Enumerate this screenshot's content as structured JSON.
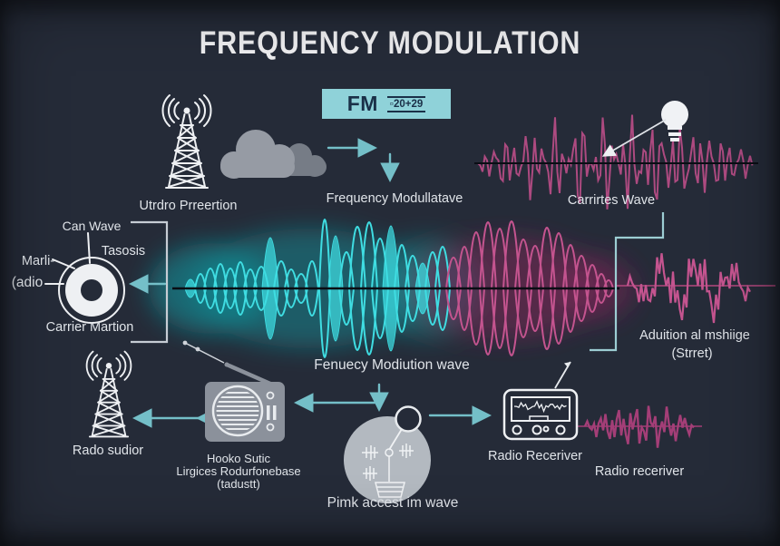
{
  "title": "FREQUENCY MODULATION",
  "badge": {
    "label": "FM",
    "code": "▫20+29"
  },
  "colors": {
    "background": "#252b38",
    "teal_arrow": "#74bfc8",
    "cyan_wave": "#3fdde2",
    "magenta_wave": "#c4548f",
    "badge_bg": "#8fd2d9",
    "badge_text": "#1a3048",
    "label_text": "#e0e4e9",
    "white_line": "#eef0f3",
    "icon_gray": "#939aa4"
  },
  "labels": {
    "transmitter": "Utrdro Prreertion",
    "fm_arrow": "Frequency Modullatave",
    "carrier_wave": "Carrirtes Wave",
    "can_wave": "Can Wave",
    "tasosis": "Tasosis",
    "marli": "Marli-",
    "adio": "(adio",
    "carrier_martion": "Carrier Martion",
    "message_line1": "Aduition al mshiige",
    "message_line2": "(Strret)",
    "modulated_wave": "Fenuecy Modiution wave",
    "radio_tower": "Rado sudior",
    "radio_line1": "Hooko Sutic",
    "radio_line2": "Lirgices Rodurfonebase",
    "radio_line3": "(tadustt)",
    "access_circle": "Pimk accest im wave",
    "receiver": "Radio Receriver",
    "receiver_wave": "Radio receriver"
  }
}
